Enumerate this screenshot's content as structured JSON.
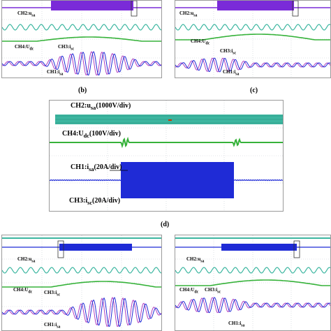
{
  "captions": {
    "b": "(b)",
    "c": "(c)",
    "d": "(d)"
  },
  "labels": {
    "ch1_ia": "CH1:i",
    "ch1_sub": "sa",
    "ch2_us": "CH2:u",
    "ch2_sub": "sa",
    "ch3_ic": "CH3:i",
    "ch3_sub": "sc",
    "ch4_udc": "CH4:U",
    "ch4_sub": "dc",
    "d_ch2": "CH2:u",
    "d_ch2_sub": "sa",
    "d_ch2_scale": "(1000V/div)",
    "d_ch4": "CH4:U",
    "d_ch4_sub": "dc",
    "d_ch4_scale": "(100V/div)",
    "d_ch1": "CH1:i",
    "d_ch1_sub": "sa",
    "d_ch1_scale": "(20A/div)",
    "d_ch3": "CH3:i",
    "d_ch3_sub": "sc",
    "d_ch3_scale": "(20A/div)"
  },
  "colors": {
    "ch1": "#1f2bd6",
    "ch2": "#3cb6a0",
    "ch3": "#b040c0",
    "ch4": "#36b23a",
    "grid": "#9aa0a8"
  }
}
